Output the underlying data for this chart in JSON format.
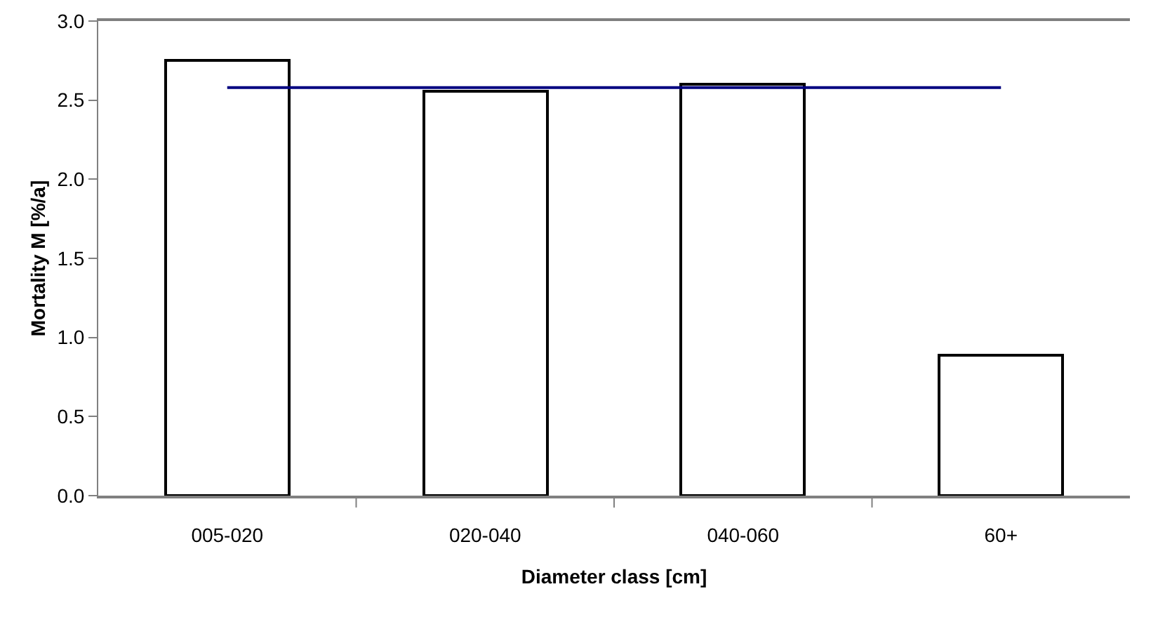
{
  "chart_data": {
    "type": "bar",
    "xlabel": "Diameter class [cm]",
    "ylabel": "Mortality M [%/a]",
    "categories": [
      "005-020",
      "020-040",
      "040-060",
      "60+"
    ],
    "series": [
      {
        "color": "#ffffff",
        "values": [
          2.75,
          2.56,
          2.6,
          0.89
        ]
      },
      {
        "type": "line",
        "color": "#000080",
        "values": [
          2.58,
          2.58,
          2.58,
          2.58
        ],
        "marker": "none"
      }
    ],
    "ylim": [
      0,
      3
    ],
    "yticks": [
      {
        "value": 0,
        "label": "0.0"
      },
      {
        "value": 0.5,
        "label": "0.5"
      },
      {
        "value": 1,
        "label": "1.0"
      },
      {
        "value": 1.5,
        "label": "1.5"
      },
      {
        "value": 2,
        "label": "2.0"
      },
      {
        "value": 2.5,
        "label": "2.5"
      },
      {
        "value": 3,
        "label": "3.0"
      }
    ],
    "grid": false
  }
}
